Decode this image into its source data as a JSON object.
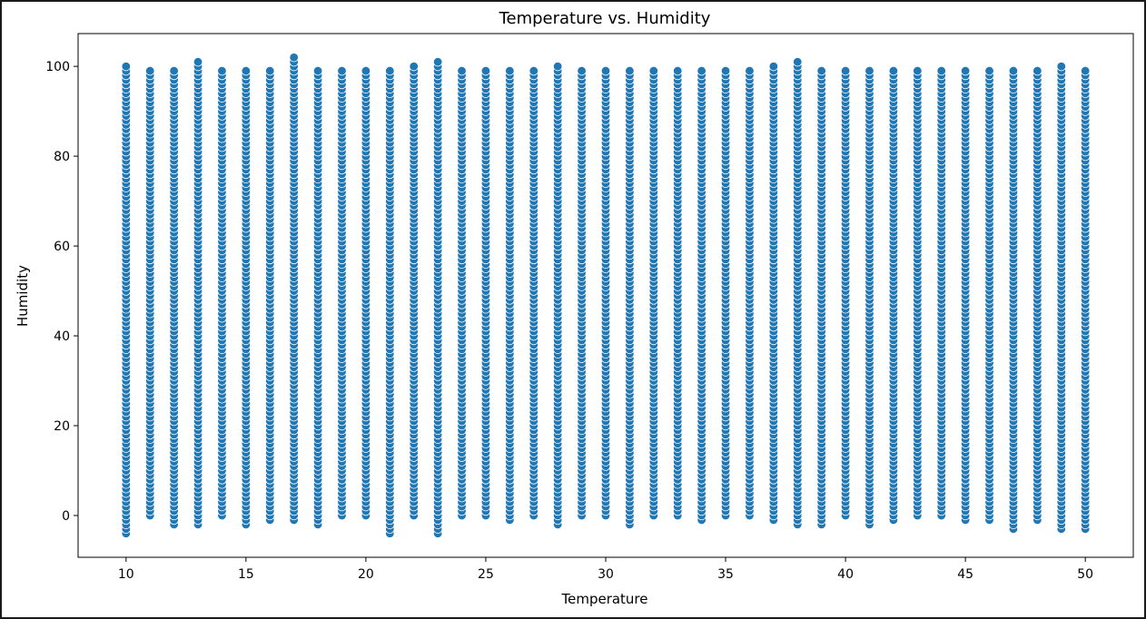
{
  "chart_data": {
    "type": "scatter",
    "title": "Temperature vs. Humidity",
    "xlabel": "Temperature",
    "ylabel": "Humidity",
    "xlim": [
      8.0,
      52.0
    ],
    "ylim": [
      -9.3,
      107.3
    ],
    "x_ticks": [
      10,
      15,
      20,
      25,
      30,
      35,
      40,
      45,
      50
    ],
    "y_ticks": [
      0,
      20,
      40,
      60,
      80,
      100
    ],
    "grid": false,
    "legend": "none",
    "marker_color": "#1f77b4",
    "marker_edge_color": "#ffffff",
    "x_values": [
      10,
      11,
      12,
      13,
      14,
      15,
      16,
      17,
      18,
      19,
      20,
      21,
      22,
      23,
      24,
      25,
      26,
      27,
      28,
      29,
      30,
      31,
      32,
      33,
      34,
      35,
      36,
      37,
      38,
      39,
      40,
      41,
      42,
      43,
      44,
      45,
      46,
      47,
      48,
      49,
      50
    ],
    "y_range_per_x": [
      [
        -4,
        100
      ],
      [
        0,
        99
      ],
      [
        -2,
        99
      ],
      [
        -2,
        101
      ],
      [
        0,
        99
      ],
      [
        -2,
        99
      ],
      [
        -1,
        99
      ],
      [
        -1,
        102
      ],
      [
        -2,
        99
      ],
      [
        0,
        99
      ],
      [
        0,
        99
      ],
      [
        -4,
        99
      ],
      [
        0,
        100
      ],
      [
        -4,
        101
      ],
      [
        0,
        99
      ],
      [
        0,
        99
      ],
      [
        -1,
        99
      ],
      [
        0,
        99
      ],
      [
        -2,
        100
      ],
      [
        0,
        99
      ],
      [
        0,
        99
      ],
      [
        -2,
        99
      ],
      [
        0,
        99
      ],
      [
        0,
        99
      ],
      [
        -1,
        99
      ],
      [
        0,
        99
      ],
      [
        0,
        99
      ],
      [
        -1,
        100
      ],
      [
        -2,
        101
      ],
      [
        -2,
        99
      ],
      [
        0,
        99
      ],
      [
        -2,
        99
      ],
      [
        -1,
        99
      ],
      [
        0,
        99
      ],
      [
        0,
        99
      ],
      [
        -1,
        99
      ],
      [
        -1,
        99
      ],
      [
        -3,
        99
      ],
      [
        -1,
        99
      ],
      [
        -3,
        100
      ],
      [
        -3,
        99
      ]
    ]
  }
}
